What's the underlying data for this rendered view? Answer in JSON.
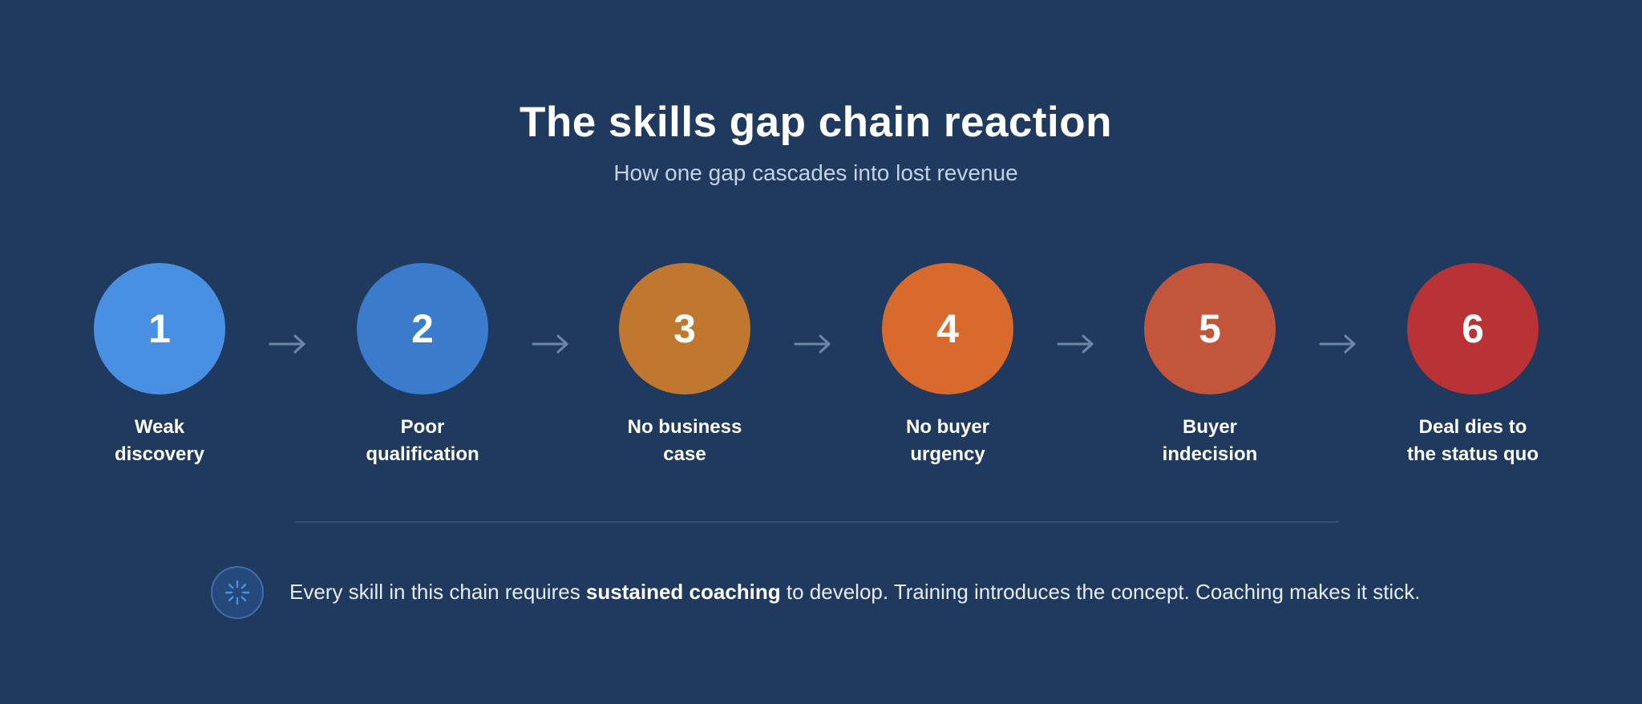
{
  "header": {
    "title": "The skills gap chain reaction",
    "subtitle": "How one gap cascades into lost revenue"
  },
  "steps": [
    {
      "number": "1",
      "label": "Weak\ndiscovery",
      "color": "#4a90e2"
    },
    {
      "number": "2",
      "label": "Poor\nqualification",
      "color": "#3a7ccb"
    },
    {
      "number": "3",
      "label": "No business\ncase",
      "color": "#c0772f"
    },
    {
      "number": "4",
      "label": "No buyer\nurgency",
      "color": "#d76a2c"
    },
    {
      "number": "5",
      "label": "Buyer\nindecision",
      "color": "#c4553d"
    },
    {
      "number": "6",
      "label": "Deal dies to\nthe status quo",
      "color": "#b93235"
    }
  ],
  "arrow_color": "#6f86a6",
  "footer": {
    "icon": "sparkle-icon",
    "note_before": "Every skill in this chain requires ",
    "note_emphasis": "sustained coaching",
    "note_after": " to develop. Training introduces the concept. Coaching makes it stick."
  }
}
